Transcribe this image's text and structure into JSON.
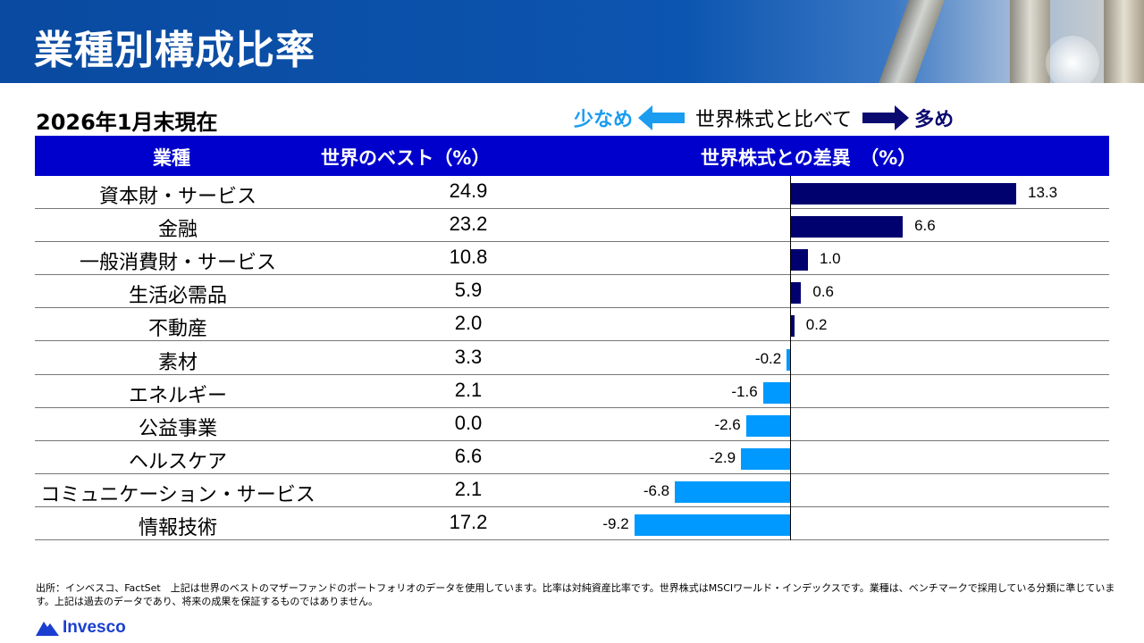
{
  "title": "業種別構成比率",
  "as_of": "2026年1月末現在",
  "legend": {
    "less": "少なめ",
    "middle": "世界株式と比べて",
    "more": "多め"
  },
  "header": {
    "col1": "業種",
    "col2": "世界のベスト（%）",
    "col3": "世界株式との差異　（%）"
  },
  "colors": {
    "positive": "#00006e",
    "negative": "#0099ff",
    "header": "#0000cc"
  },
  "chart_data": {
    "type": "bar",
    "orientation": "horizontal",
    "categories": [
      "資本財・サービス",
      "金融",
      "一般消費財・サービス",
      "生活必需品",
      "不動産",
      "素材",
      "エネルギー",
      "公益事業",
      "ヘルスケア",
      "コミュニケーション・サービス",
      "情報技術"
    ],
    "fund_weights": [
      "24.9",
      "23.2",
      "10.8",
      "5.9",
      "2.0",
      "3.3",
      "2.1",
      "0.0",
      "6.6",
      "2.1",
      "17.2"
    ],
    "values": [
      13.3,
      6.6,
      1.0,
      0.6,
      0.2,
      -0.2,
      -1.6,
      -2.6,
      -2.9,
      -6.8,
      -9.2
    ],
    "labels": [
      "13.3",
      "6.6",
      "1.0",
      "0.6",
      "0.2",
      "-0.2",
      "-1.6",
      "-2.6",
      "-2.9",
      "-6.8",
      "-9.2"
    ]
  },
  "footnote": "出所：インベスコ、FactSet　上記は世界のベストのマザーファンドのポートフォリオのデータを使用しています。比率は対純資産比率です。世界株式はMSCIワールド・インデックスです。業種は、ベンチマークで採用している分類に準じています。上記は過去のデータであり、将来の成果を保証するものではありません。",
  "logo": "Invesco"
}
